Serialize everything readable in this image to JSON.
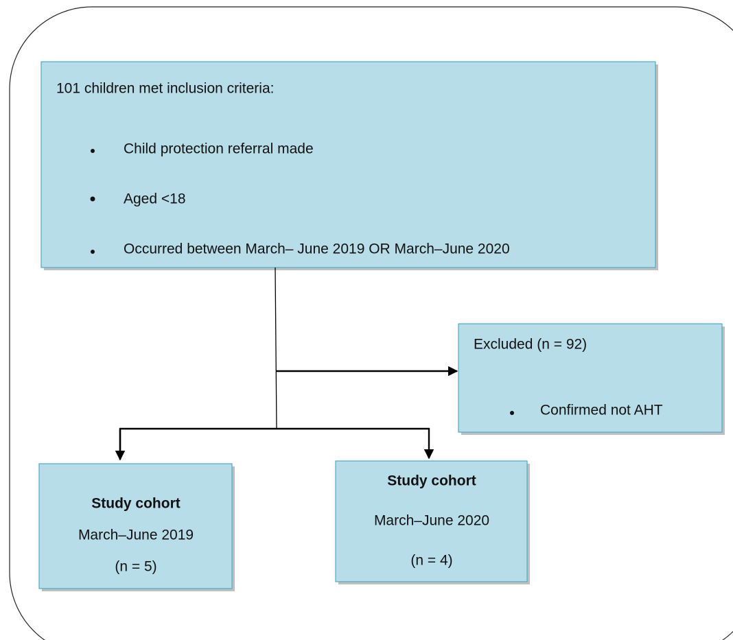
{
  "nodes": [
    {
      "label": "101 children met inclusion criteria:",
      "bullets": [
        "Child protection referral made",
        "Aged <18",
        "Occurred between March– June 2019 OR March–June 2020"
      ]
    },
    {
      "label": "Excluded (n = 92)",
      "bullets": [
        "Confirmed not AHT"
      ]
    },
    {
      "title": "Study cohort",
      "lines": [
        "March–June 2019",
        "(n = 5)"
      ]
    },
    {
      "title": "Study cohort",
      "lines": [
        "March–June 2020",
        "(n = 4)"
      ]
    }
  ]
}
